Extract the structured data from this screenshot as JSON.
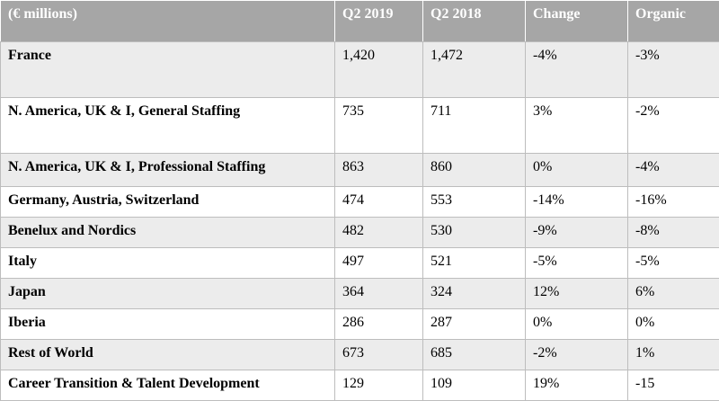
{
  "table": {
    "headers": [
      "(€  millions)",
      "Q2 2019",
      "Q2 2018",
      "Change",
      "Organic"
    ],
    "rows": [
      [
        "France",
        "1,420",
        "1,472",
        "-4%",
        "-3%"
      ],
      [
        "N. America, UK & I, General Staffing",
        "735",
        "711",
        "3%",
        "-2%"
      ],
      [
        "N. America, UK & I, Professional Staffing",
        "863",
        "860",
        "0%",
        "-4%"
      ],
      [
        "Germany, Austria, Switzerland",
        "474",
        "553",
        "-14%",
        "-16%"
      ],
      [
        "Benelux and Nordics",
        "482",
        "530",
        "-9%",
        "-8%"
      ],
      [
        "Italy",
        "497",
        "521",
        "-5%",
        "-5%"
      ],
      [
        "Japan",
        "364",
        "324",
        "12%",
        "6%"
      ],
      [
        "Iberia",
        "286",
        "287",
        "0%",
        "0%"
      ],
      [
        "Rest of World",
        "673",
        "685",
        "-2%",
        "1%"
      ],
      [
        "Career Transition & Talent Development",
        "129",
        "109",
        "19%",
        "-15"
      ]
    ]
  },
  "colors": {
    "header_bg": "#a6a6a6",
    "header_text": "#ffffff",
    "shaded_row": "#ececec",
    "border": "#bdbdbd"
  }
}
